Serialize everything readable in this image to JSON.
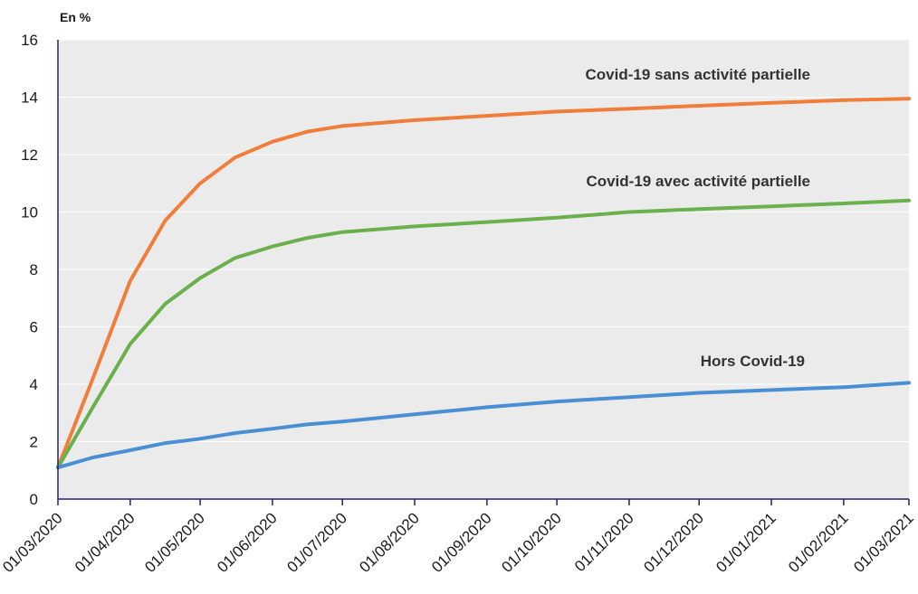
{
  "chart_data": {
    "type": "line",
    "unit_label": "En %",
    "x": [
      "01/03/2020",
      "01/04/2020",
      "01/05/2020",
      "01/06/2020",
      "01/07/2020",
      "01/08/2020",
      "01/09/2020",
      "01/10/2020",
      "01/11/2020",
      "01/12/2020",
      "01/01/2021",
      "01/02/2021",
      "01/03/2021"
    ],
    "ylim": [
      0,
      16
    ],
    "yticks": [
      0,
      2,
      4,
      6,
      8,
      10,
      12,
      14,
      16
    ],
    "grid": true,
    "background_color": "#ebebeb",
    "axis_color": "#2a1f6e",
    "series": [
      {
        "name": "Covid-19 sans activité partielle",
        "color": "#f07d3a",
        "points": [
          [
            "01/03/2020",
            1.1
          ],
          [
            "16/03/2020",
            4.2
          ],
          [
            "01/04/2020",
            7.6
          ],
          [
            "16/04/2020",
            9.7
          ],
          [
            "01/05/2020",
            11.0
          ],
          [
            "16/05/2020",
            11.9
          ],
          [
            "01/06/2020",
            12.45
          ],
          [
            "16/06/2020",
            12.8
          ],
          [
            "01/07/2020",
            13.0
          ],
          [
            "01/08/2020",
            13.2
          ],
          [
            "01/09/2020",
            13.35
          ],
          [
            "01/10/2020",
            13.5
          ],
          [
            "01/11/2020",
            13.6
          ],
          [
            "01/12/2020",
            13.7
          ],
          [
            "01/01/2021",
            13.8
          ],
          [
            "01/02/2021",
            13.9
          ],
          [
            "01/03/2021",
            13.95
          ]
        ]
      },
      {
        "name": "Covid-19 avec activité partielle",
        "color": "#6ab04c",
        "points": [
          [
            "01/03/2020",
            1.1
          ],
          [
            "16/03/2020",
            3.2
          ],
          [
            "01/04/2020",
            5.4
          ],
          [
            "16/04/2020",
            6.8
          ],
          [
            "01/05/2020",
            7.7
          ],
          [
            "16/05/2020",
            8.4
          ],
          [
            "01/06/2020",
            8.8
          ],
          [
            "16/06/2020",
            9.1
          ],
          [
            "01/07/2020",
            9.3
          ],
          [
            "01/08/2020",
            9.5
          ],
          [
            "01/09/2020",
            9.65
          ],
          [
            "01/10/2020",
            9.8
          ],
          [
            "01/11/2020",
            10.0
          ],
          [
            "01/12/2020",
            10.1
          ],
          [
            "01/01/2021",
            10.2
          ],
          [
            "01/02/2021",
            10.3
          ],
          [
            "01/03/2021",
            10.4
          ]
        ]
      },
      {
        "name": "Hors Covid-19",
        "color": "#4a8fd4",
        "points": [
          [
            "01/03/2020",
            1.1
          ],
          [
            "16/03/2020",
            1.45
          ],
          [
            "01/04/2020",
            1.7
          ],
          [
            "16/04/2020",
            1.95
          ],
          [
            "01/05/2020",
            2.1
          ],
          [
            "16/05/2020",
            2.3
          ],
          [
            "01/06/2020",
            2.45
          ],
          [
            "16/06/2020",
            2.6
          ],
          [
            "01/07/2020",
            2.7
          ],
          [
            "01/08/2020",
            2.95
          ],
          [
            "01/09/2020",
            3.2
          ],
          [
            "01/10/2020",
            3.4
          ],
          [
            "01/11/2020",
            3.55
          ],
          [
            "01/12/2020",
            3.7
          ],
          [
            "01/01/2021",
            3.8
          ],
          [
            "01/02/2021",
            3.9
          ],
          [
            "01/03/2021",
            4.05
          ]
        ]
      }
    ]
  }
}
